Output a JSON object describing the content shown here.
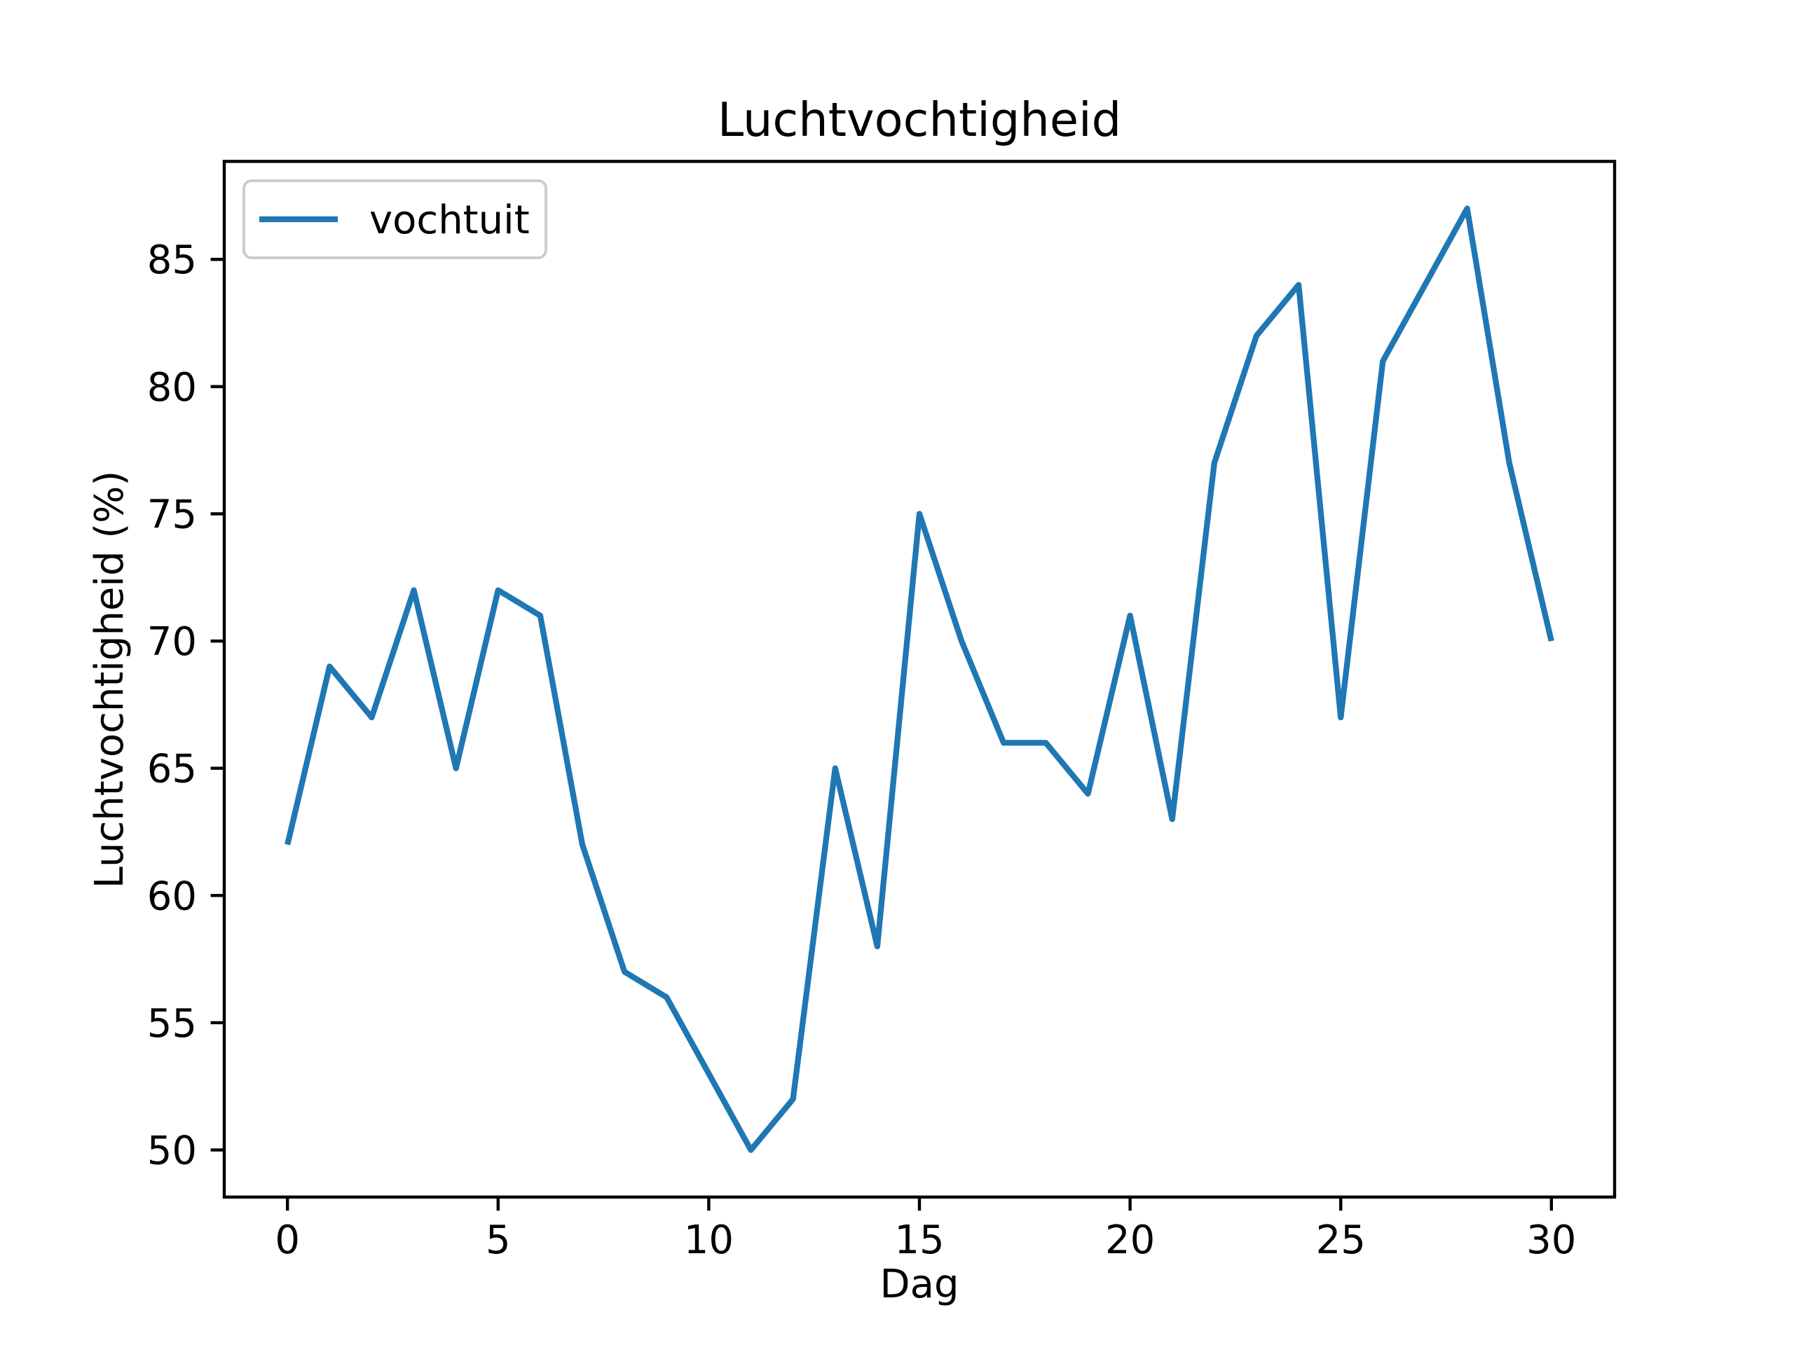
{
  "window": {
    "background": "#ffffff"
  },
  "chart_data": {
    "type": "line",
    "title": "Luchtvochtigheid",
    "xlabel": "Dag",
    "ylabel": "Luchtvochtigheid (%)",
    "categories_note": "x = day index 0..30",
    "series": [
      {
        "name": "vochtuit",
        "color": "#1f77b4",
        "x": [
          0,
          1,
          2,
          3,
          4,
          5,
          6,
          7,
          8,
          9,
          10,
          11,
          12,
          13,
          14,
          15,
          16,
          17,
          18,
          19,
          20,
          21,
          22,
          23,
          24,
          25,
          26,
          27,
          28,
          29,
          30
        ],
        "values": [
          62,
          69,
          67,
          72,
          65,
          72,
          71,
          62,
          57,
          56,
          53,
          50,
          52,
          65,
          58,
          75,
          70,
          66,
          66,
          64,
          71,
          63,
          77,
          82,
          84,
          67,
          81,
          84,
          87,
          77,
          70
        ]
      }
    ],
    "xticks": [
      0,
      5,
      10,
      15,
      20,
      25,
      30
    ],
    "yticks": [
      50,
      55,
      60,
      65,
      70,
      75,
      80,
      85
    ],
    "xlim": [
      -1.5,
      31.5
    ],
    "ylim": [
      48.15,
      88.85
    ],
    "grid": false,
    "legend_position": "upper left"
  },
  "colors": {
    "line": "#1f77b4",
    "axis": "#000000",
    "legend_border": "#cccccc",
    "legend_background": "#ffffff",
    "background": "#ffffff"
  }
}
